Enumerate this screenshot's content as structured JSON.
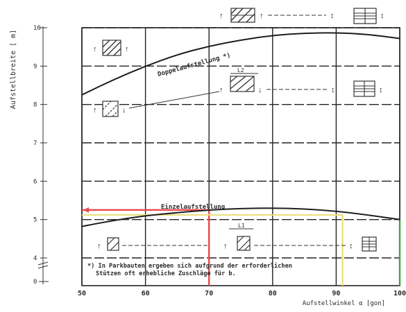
{
  "chart_data": {
    "type": "line",
    "ylabel": "Aufstellbreite [ m]",
    "xlabel": "Aufstellwinkel α [gon]",
    "x_ticks": [
      "50",
      "60",
      "70",
      "80",
      "90",
      "100"
    ],
    "y_ticks": [
      "4",
      "5",
      "6",
      "7",
      "8",
      "9",
      "10"
    ],
    "y_zero_label": "0",
    "xlim": [
      50,
      100
    ],
    "ylim": [
      4,
      10
    ],
    "grid": true,
    "series": [
      {
        "name": "Doppelaufstellung *)",
        "x": [
          50,
          55,
          60,
          65,
          70,
          75,
          80,
          85,
          90,
          95,
          100
        ],
        "y": [
          8.25,
          8.65,
          9.0,
          9.3,
          9.52,
          9.68,
          9.8,
          9.86,
          9.87,
          9.83,
          9.72
        ]
      },
      {
        "name": "Einzelaufstellung",
        "x": [
          50,
          55,
          60,
          65,
          70,
          75,
          80,
          85,
          90,
          95,
          100
        ],
        "y": [
          4.82,
          4.98,
          5.1,
          5.18,
          5.25,
          5.29,
          5.3,
          5.28,
          5.22,
          5.12,
          5.0
        ]
      }
    ],
    "markers": [
      {
        "color": "#e84a4a",
        "x": 70,
        "y": 5.25
      },
      {
        "color": "#eae07a",
        "x": 91,
        "y": 5.12
      },
      {
        "color": "#3aa640",
        "x": 100,
        "y": 5.0
      }
    ],
    "annotations": {
      "spacing_symbol_label": "L2",
      "spacing_symbol_label_small": "L1",
      "footnote_line1": "*) In Parkbauten ergeben sich aufgrund der erforderlichen",
      "footnote_line2": "Stützen oft erhebliche Zuschläge für b."
    }
  }
}
